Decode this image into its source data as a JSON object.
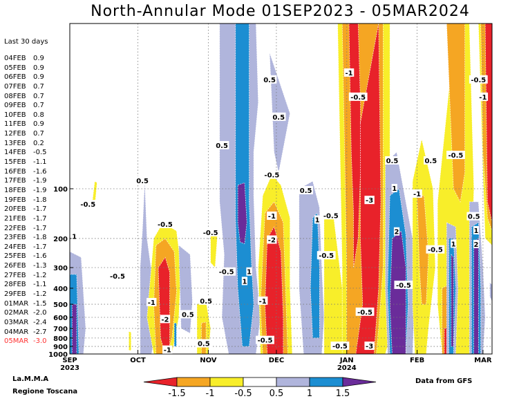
{
  "title": "North-Annular Mode 01SEP2023 - 05MAR2024",
  "side_panel": {
    "header": "Last 30 days",
    "rows": [
      {
        "date": "04FEB",
        "value": "0.9"
      },
      {
        "date": "05FEB",
        "value": "0.9"
      },
      {
        "date": "06FEB",
        "value": "0.9"
      },
      {
        "date": "07FEB",
        "value": "0.7"
      },
      {
        "date": "08FEB",
        "value": "0.7"
      },
      {
        "date": "09FEB",
        "value": "0.7"
      },
      {
        "date": "10FEB",
        "value": "0.8"
      },
      {
        "date": "11FEB",
        "value": "0.9"
      },
      {
        "date": "12FEB",
        "value": "0.7"
      },
      {
        "date": "13FEB",
        "value": "0.2"
      },
      {
        "date": "14FEB",
        "value": "-0.5"
      },
      {
        "date": "15FEB",
        "value": "-1.1"
      },
      {
        "date": "16FEB",
        "value": "-1.6"
      },
      {
        "date": "17FEB",
        "value": "-1.9"
      },
      {
        "date": "18FEB",
        "value": "-1.9"
      },
      {
        "date": "19FEB",
        "value": "-1.8"
      },
      {
        "date": "20FEB",
        "value": "-1.7"
      },
      {
        "date": "21FEB",
        "value": "-1.7"
      },
      {
        "date": "22FEB",
        "value": "-1.7"
      },
      {
        "date": "23FEB",
        "value": "-1.8"
      },
      {
        "date": "24FEB",
        "value": "-1.7"
      },
      {
        "date": "25FEB",
        "value": "-1.6"
      },
      {
        "date": "26FEB",
        "value": "-1.3"
      },
      {
        "date": "27FEB",
        "value": "-1.2"
      },
      {
        "date": "28FEB",
        "value": "-1.1"
      },
      {
        "date": "29FEB",
        "value": "-1.2"
      },
      {
        "date": "01MAR",
        "value": "-1.5"
      },
      {
        "date": "02MAR",
        "value": "-2.0"
      },
      {
        "date": "03MAR",
        "value": "-2.4"
      },
      {
        "date": "04MAR",
        "value": "-2.7"
      },
      {
        "date": "05MAR",
        "value": "-3.0"
      }
    ],
    "highlight_color": "#ff3030"
  },
  "credits": {
    "left_line1": "La.M.M.A",
    "left_line2": "Regione Toscana",
    "right": "Data from GFS"
  },
  "chart_data": {
    "type": "heatmap",
    "title": "North-Annular Mode 01SEP2023 - 05MAR2024",
    "x": {
      "start": "2023-09-01",
      "end": "2024-03-05",
      "tick_labels": [
        "SEP",
        "OCT",
        "NOV",
        "DEC",
        "JAN",
        "FEB",
        "MAR"
      ],
      "year_labels": [
        {
          "under": "SEP",
          "text": "2023"
        },
        {
          "under": "JAN",
          "text": "2024"
        }
      ],
      "tick_dates": [
        "2023-09-01",
        "2023-10-01",
        "2023-11-01",
        "2023-12-01",
        "2024-01-01",
        "2024-02-01",
        "2024-03-01"
      ]
    },
    "y": {
      "quantity": "pressure",
      "scale": "log",
      "inverted": true,
      "range": [
        1000,
        10
      ],
      "tick_values": [
        1000,
        900,
        800,
        700,
        600,
        500,
        400,
        300,
        200,
        100
      ],
      "tick_labels": [
        "1000",
        "900",
        "800",
        "700",
        "600",
        "500",
        "400",
        "300",
        "200",
        "100"
      ]
    },
    "grid": true,
    "colorbar": {
      "labels": [
        "-1.5",
        "-1",
        "-0.5",
        "0.5",
        "1",
        "1.5"
      ],
      "colors": [
        "#e8222a",
        "#f5a623",
        "#f8ee2a",
        "#ffffff",
        "#b0b5dc",
        "#1c8ed2",
        "#6a2c9a"
      ]
    },
    "colors": {
      "le_-1.5": "#e8222a",
      "-1.5_-1": "#f5a623",
      "-1_-0.5": "#f8ee2a",
      "-0.5_0.5": "#ffffff",
      "0.5_1": "#b0b5dc",
      "1_1.5": "#1c8ed2",
      "ge_1.5": "#6a2c9a"
    },
    "contour_labels": [
      {
        "text": "1",
        "date": "2023-09-03",
        "p": 195
      },
      {
        "text": "-0.5",
        "date": "2023-09-09",
        "p": 125
      },
      {
        "text": "-0.5",
        "date": "2023-09-22",
        "p": 340
      },
      {
        "text": "0.5",
        "date": "2023-10-03",
        "p": 90
      },
      {
        "text": "-0.5",
        "date": "2023-10-13",
        "p": 165
      },
      {
        "text": "-1",
        "date": "2023-10-07",
        "p": 490
      },
      {
        "text": "-2",
        "date": "2023-10-13",
        "p": 620
      },
      {
        "text": "-1",
        "date": "2023-10-14",
        "p": 950
      },
      {
        "text": "0.5",
        "date": "2023-10-23",
        "p": 580
      },
      {
        "text": "-0.5",
        "date": "2023-11-02",
        "p": 185
      },
      {
        "text": "0.5",
        "date": "2023-10-31",
        "p": 480
      },
      {
        "text": "-0.5",
        "date": "2023-11-09",
        "p": 320
      },
      {
        "text": "0.5",
        "date": "2023-10-30",
        "p": 870
      },
      {
        "text": "0.5",
        "date": "2023-11-07",
        "p": 55
      },
      {
        "text": "1",
        "date": "2023-11-19",
        "p": 320
      },
      {
        "text": "1",
        "date": "2023-11-17",
        "p": 365
      },
      {
        "text": "-0.5",
        "date": "2023-11-26",
        "p": 830
      },
      {
        "text": "-1",
        "date": "2023-11-25",
        "p": 480
      },
      {
        "text": "-2",
        "date": "2023-11-29",
        "p": 205
      },
      {
        "text": "-1",
        "date": "2023-11-29",
        "p": 147
      },
      {
        "text": "-0.5",
        "date": "2023-11-29",
        "p": 83
      },
      {
        "text": "0.5",
        "date": "2023-12-02",
        "p": 37
      },
      {
        "text": "0.5",
        "date": "2023-11-28",
        "p": 22
      },
      {
        "text": "0.5",
        "date": "2023-12-14",
        "p": 103
      },
      {
        "text": "1",
        "date": "2023-12-19",
        "p": 155
      },
      {
        "text": "-0.5",
        "date": "2023-12-25",
        "p": 146
      },
      {
        "text": "-0.5",
        "date": "2023-12-23",
        "p": 255
      },
      {
        "text": "-0.5",
        "date": "2023-12-29",
        "p": 900
      },
      {
        "text": "-1",
        "date": "2024-01-02",
        "p": 20
      },
      {
        "text": "-0.5",
        "date": "2024-01-06",
        "p": 28
      },
      {
        "text": "-3",
        "date": "2024-01-11",
        "p": 118
      },
      {
        "text": "-0.5",
        "date": "2024-01-09",
        "p": 560
      },
      {
        "text": "-3",
        "date": "2024-01-11",
        "p": 900
      },
      {
        "text": "0.5",
        "date": "2024-01-21",
        "p": 68
      },
      {
        "text": "1",
        "date": "2024-01-22",
        "p": 100
      },
      {
        "text": "2",
        "date": "2024-01-23",
        "p": 183
      },
      {
        "text": "-0.5",
        "date": "2024-01-26",
        "p": 385
      },
      {
        "text": "-1",
        "date": "2024-02-01",
        "p": 108
      },
      {
        "text": "-0.5",
        "date": "2024-02-09",
        "p": 235
      },
      {
        "text": "0.5",
        "date": "2024-02-07",
        "p": 68
      },
      {
        "text": "-0.5",
        "date": "2024-02-18",
        "p": 63
      },
      {
        "text": "1",
        "date": "2024-02-17",
        "p": 217
      },
      {
        "text": "0.5",
        "date": "2024-02-26",
        "p": 148
      },
      {
        "text": "1",
        "date": "2024-02-27",
        "p": 180
      },
      {
        "text": "2",
        "date": "2024-02-27",
        "p": 218
      },
      {
        "text": "-1",
        "date": "2024-03-01",
        "p": 28
      },
      {
        "text": "-0.5",
        "date": "2024-02-28",
        "p": 22
      }
    ]
  }
}
